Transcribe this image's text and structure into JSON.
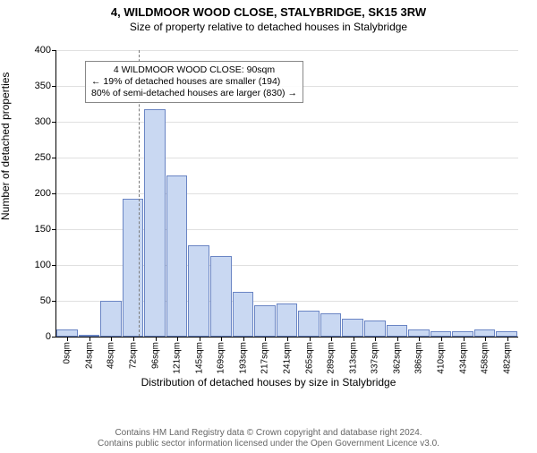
{
  "title": "4, WILDMOOR WOOD CLOSE, STALYBRIDGE, SK15 3RW",
  "subtitle": "Size of property relative to detached houses in Stalybridge",
  "chart": {
    "type": "histogram",
    "ylabel": "Number of detached properties",
    "xlabel": "Distribution of detached houses by size in Stalybridge",
    "ylim": [
      0,
      400
    ],
    "yticks": [
      0,
      50,
      100,
      150,
      200,
      250,
      300,
      350,
      400
    ],
    "grid_color": "#e0e0e0",
    "bar_fill": "#c9d8f2",
    "bar_stroke": "#6a85c4",
    "refline_color": "#7a7a7a",
    "refline_x": 90,
    "bin_width": 24,
    "categories": [
      "0sqm",
      "24sqm",
      "48sqm",
      "72sqm",
      "96sqm",
      "121sqm",
      "145sqm",
      "169sqm",
      "193sqm",
      "217sqm",
      "241sqm",
      "265sqm",
      "289sqm",
      "313sqm",
      "337sqm",
      "362sqm",
      "386sqm",
      "410sqm",
      "434sqm",
      "458sqm",
      "482sqm"
    ],
    "values": [
      10,
      2,
      50,
      192,
      318,
      225,
      128,
      113,
      62,
      44,
      46,
      36,
      32,
      25,
      22,
      16,
      10,
      7,
      8,
      10,
      8
    ],
    "annotation": {
      "line1": "4 WILDMOOR WOOD CLOSE: 90sqm",
      "line2": "← 19% of detached houses are smaller (194)",
      "line3": "80% of semi-detached houses are larger (830) →"
    }
  },
  "footer": {
    "line1": "Contains HM Land Registry data © Crown copyright and database right 2024.",
    "line2": "Contains public sector information licensed under the Open Government Licence v3.0."
  }
}
